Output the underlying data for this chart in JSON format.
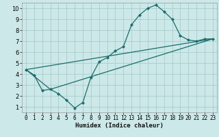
{
  "title": "",
  "xlabel": "Humidex (Indice chaleur)",
  "bg_color": "#cce8e8",
  "grid_color": "#aacccc",
  "line_color": "#1a6b6b",
  "xlim": [
    -0.5,
    23.5
  ],
  "ylim": [
    0.5,
    10.5
  ],
  "xticks": [
    0,
    1,
    2,
    3,
    4,
    5,
    6,
    7,
    8,
    9,
    10,
    11,
    12,
    13,
    14,
    15,
    16,
    17,
    18,
    19,
    20,
    21,
    22,
    23
  ],
  "yticks": [
    1,
    2,
    3,
    4,
    5,
    6,
    7,
    8,
    9,
    10
  ],
  "line1_x": [
    0,
    1,
    2,
    3,
    4,
    5,
    6,
    7,
    8,
    9,
    10,
    11,
    12,
    13,
    14,
    15,
    16,
    17,
    18,
    19,
    20,
    21,
    22,
    23
  ],
  "line1_y": [
    4.4,
    3.9,
    2.5,
    2.6,
    2.2,
    1.6,
    0.9,
    1.4,
    3.7,
    5.1,
    5.5,
    6.1,
    6.5,
    8.5,
    9.4,
    10.0,
    10.3,
    9.7,
    9.0,
    7.5,
    7.1,
    7.0,
    7.2,
    7.2
  ],
  "line2_x": [
    0,
    23
  ],
  "line2_y": [
    4.4,
    7.2
  ],
  "line3_x": [
    0,
    3,
    23
  ],
  "line3_y": [
    4.4,
    2.6,
    7.2
  ],
  "tick_fontsize": 5.5,
  "xlabel_fontsize": 6.5,
  "lw": 0.9,
  "marker_size": 2.2
}
